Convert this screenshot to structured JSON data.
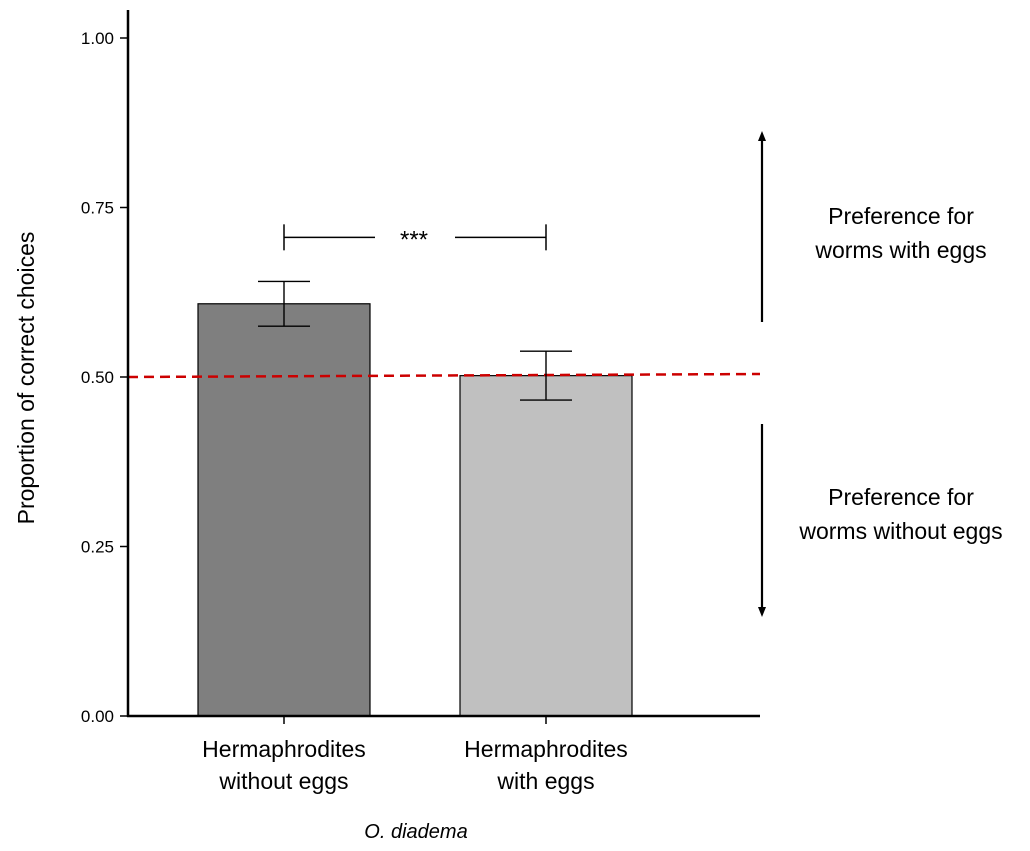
{
  "chart_data": {
    "type": "bar",
    "categories": [
      [
        "Hermaphrodites",
        "without eggs"
      ],
      [
        "Hermaphrodites",
        "with eggs"
      ]
    ],
    "values": [
      0.608,
      0.502
    ],
    "errors": [
      {
        "low": 0.575,
        "high": 0.641
      },
      {
        "low": 0.466,
        "high": 0.538
      }
    ],
    "bar_colors": [
      "#7f7f7f",
      "#c0c0c0"
    ],
    "xlabel": "O. diadema",
    "ylabel": "Proportion of correct choices",
    "ylim": [
      0,
      1.03
    ],
    "yticks": [
      0.0,
      0.25,
      0.5,
      0.75,
      1.0
    ],
    "ytick_labels": [
      "0.00",
      "0.25",
      "0.50",
      "0.75",
      "1.00"
    ],
    "reference_line": {
      "y": 0.5,
      "color": "#cc0000",
      "style": "dashed"
    },
    "significance": {
      "between": [
        0,
        1
      ],
      "label": "***",
      "y": 0.706
    },
    "annotations": {
      "up": [
        "Preference for",
        "worms with eggs"
      ],
      "down": [
        "Preference for",
        "worms without eggs"
      ]
    },
    "grid": false
  }
}
